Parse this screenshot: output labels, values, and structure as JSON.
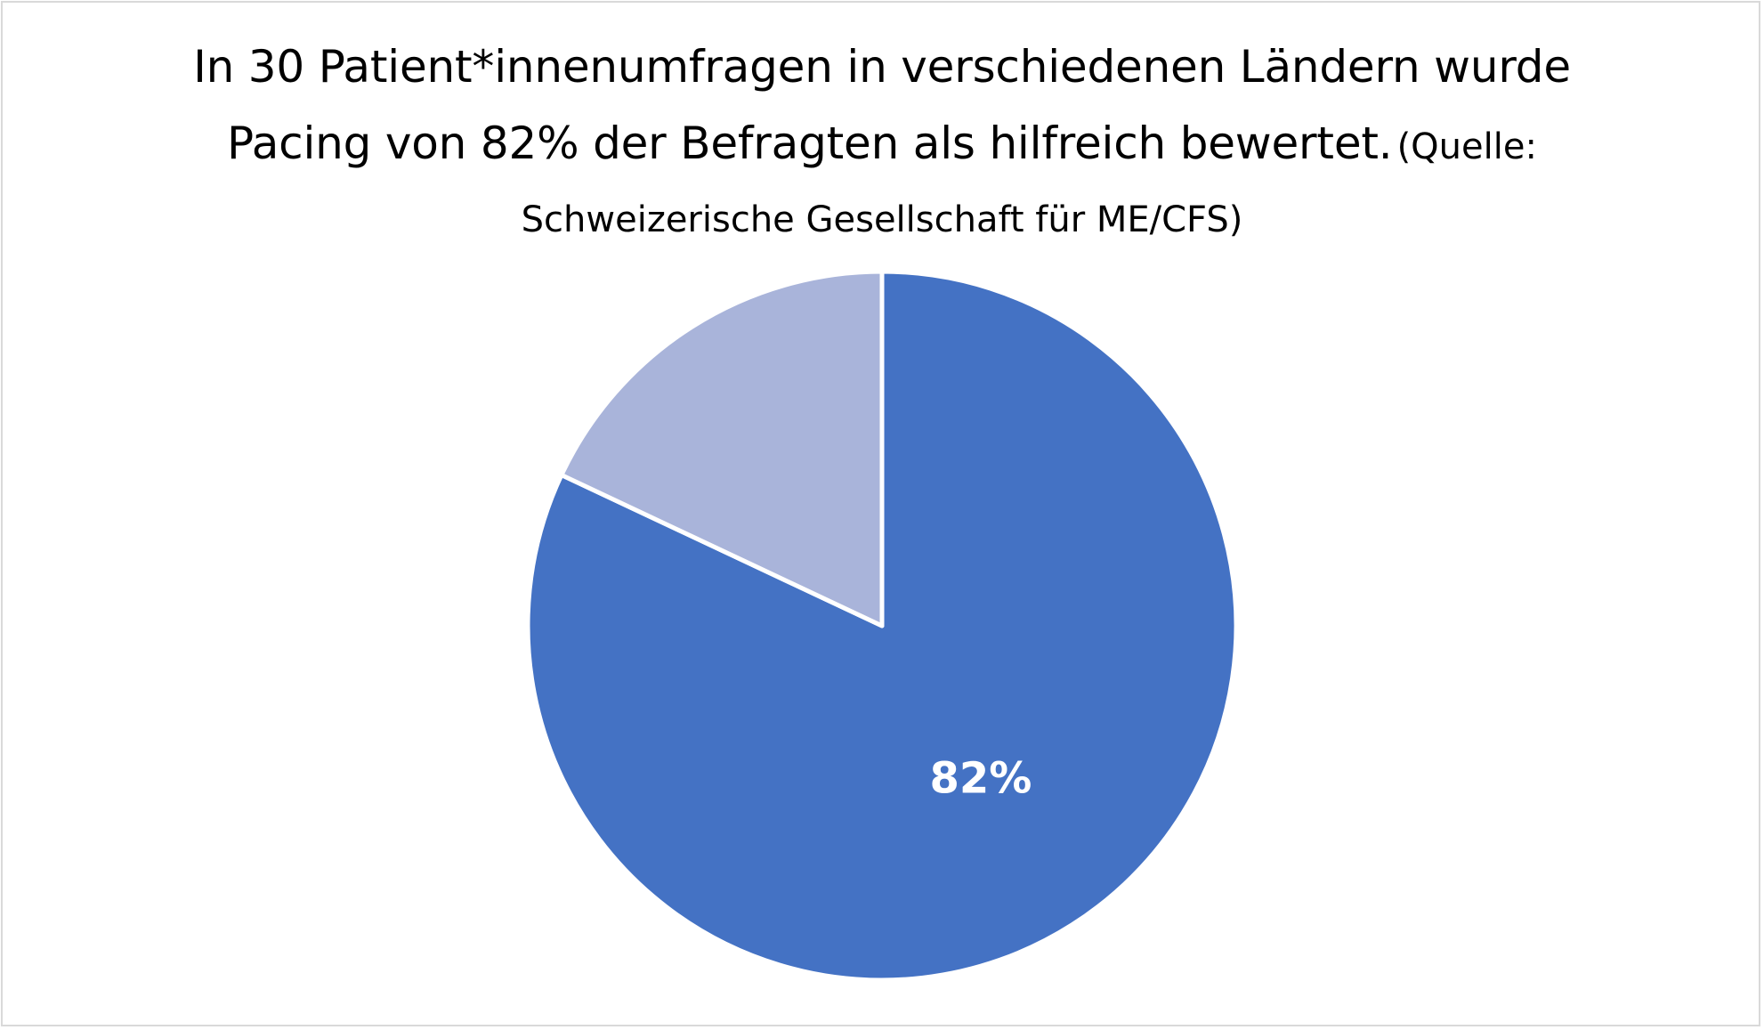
{
  "chart_data": {
    "type": "pie",
    "title": {
      "line1": "In 30 Patient*innenumfragen in verschiedenen Ländern wurde",
      "line2_main": "Pacing von 82% der Befragten als hilfreich bewertet.",
      "line2_small": "(Quelle:",
      "line3": "Schweizerische Gesellschaft für ME/CFS)"
    },
    "slices": [
      {
        "value": 82,
        "label": "82%",
        "color": "#4472c4"
      },
      {
        "value": 18,
        "label": "",
        "color": "#a9b4da"
      }
    ],
    "start_angle_deg": 0,
    "direction": "clockwise",
    "legend": "none"
  }
}
